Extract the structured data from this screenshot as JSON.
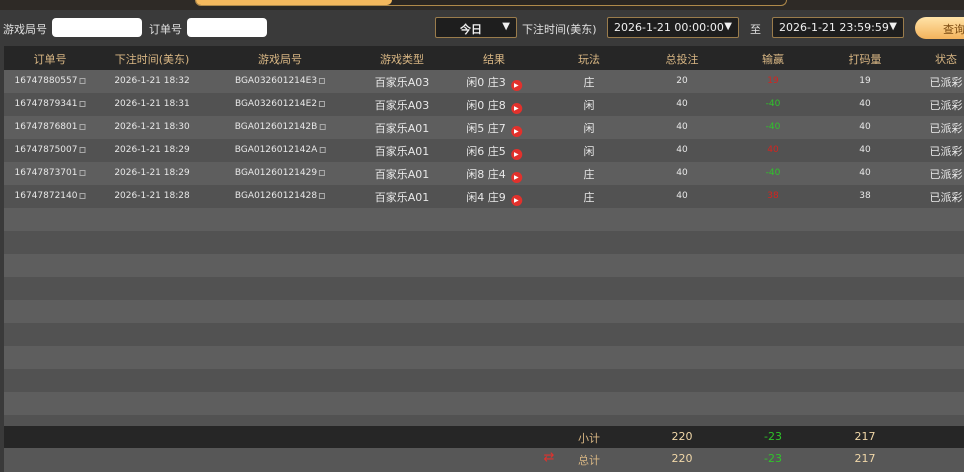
{
  "filters": {
    "round_label": "游戏局号",
    "round_value": "",
    "order_label": "订单号",
    "order_value": "",
    "range_select": "今日",
    "time_label": "下注时间(美东)",
    "start": "2026-1-21 00:00:00",
    "to_label": "至",
    "end": "2026-1-21 23:59:59",
    "query": "查询"
  },
  "columns": [
    "订单号",
    "下注时间(美东)",
    "游戏局号",
    "游戏类型",
    "结果",
    "玩法",
    "总投注",
    "输赢",
    "打码量",
    "状态"
  ],
  "rows": [
    {
      "order": "16747880557",
      "time": "2026-1-21 18:32",
      "round": "BGA032601214E3",
      "type": "百家乐A03",
      "result": "闲0 庄3",
      "play": "庄",
      "bet": "20",
      "win": "19",
      "win_color": "red",
      "valid": "19",
      "status": "已派彩"
    },
    {
      "order": "16747879341",
      "time": "2026-1-21 18:31",
      "round": "BGA032601214E2",
      "type": "百家乐A03",
      "result": "闲0 庄8",
      "play": "闲",
      "bet": "40",
      "win": "-40",
      "win_color": "green",
      "valid": "40",
      "status": "已派彩"
    },
    {
      "order": "16747876801",
      "time": "2026-1-21 18:30",
      "round": "BGA0126012142B",
      "type": "百家乐A01",
      "result": "闲5 庄7",
      "play": "闲",
      "bet": "40",
      "win": "-40",
      "win_color": "green",
      "valid": "40",
      "status": "已派彩"
    },
    {
      "order": "16747875007",
      "time": "2026-1-21 18:29",
      "round": "BGA0126012142A",
      "type": "百家乐A01",
      "result": "闲6 庄5",
      "play": "闲",
      "bet": "40",
      "win": "40",
      "win_color": "red",
      "valid": "40",
      "status": "已派彩"
    },
    {
      "order": "16747873701",
      "time": "2026-1-21 18:29",
      "round": "BGA01260121429",
      "type": "百家乐A01",
      "result": "闲8 庄4",
      "play": "庄",
      "bet": "40",
      "win": "-40",
      "win_color": "green",
      "valid": "40",
      "status": "已派彩"
    },
    {
      "order": "16747872140",
      "time": "2026-1-21 18:28",
      "round": "BGA01260121428",
      "type": "百家乐A01",
      "result": "闲4 庄9",
      "play": "庄",
      "bet": "40",
      "win": "38",
      "win_color": "red",
      "valid": "38",
      "status": "已派彩"
    }
  ],
  "subtotal": {
    "label": "小计",
    "bet": "220",
    "win": "-23",
    "valid": "217"
  },
  "total": {
    "label": "总计",
    "bet": "220",
    "win": "-23",
    "valid": "217"
  }
}
